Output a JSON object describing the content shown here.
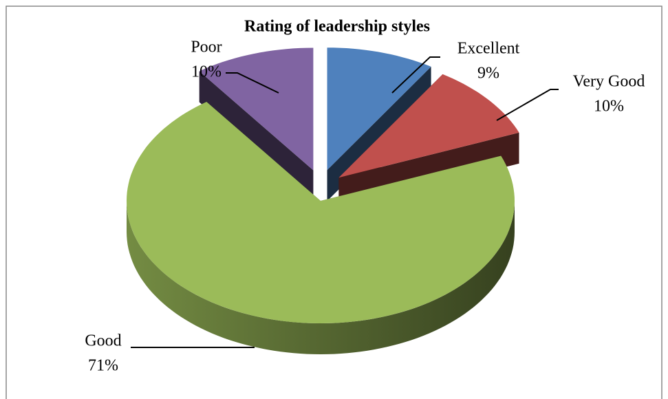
{
  "chart_data": {
    "type": "pie3d",
    "title": "Rating of leadership styles",
    "categories": [
      "Excellent",
      "Very Good",
      "Good",
      "Poor"
    ],
    "values": [
      9,
      10,
      71,
      10
    ],
    "value_labels": [
      "9%",
      "10%",
      "71%",
      "10%"
    ],
    "colors": [
      "#4f81bd",
      "#c0504d",
      "#9bbb59",
      "#8064a2"
    ],
    "exploded": [
      true,
      true,
      false,
      true
    ]
  }
}
